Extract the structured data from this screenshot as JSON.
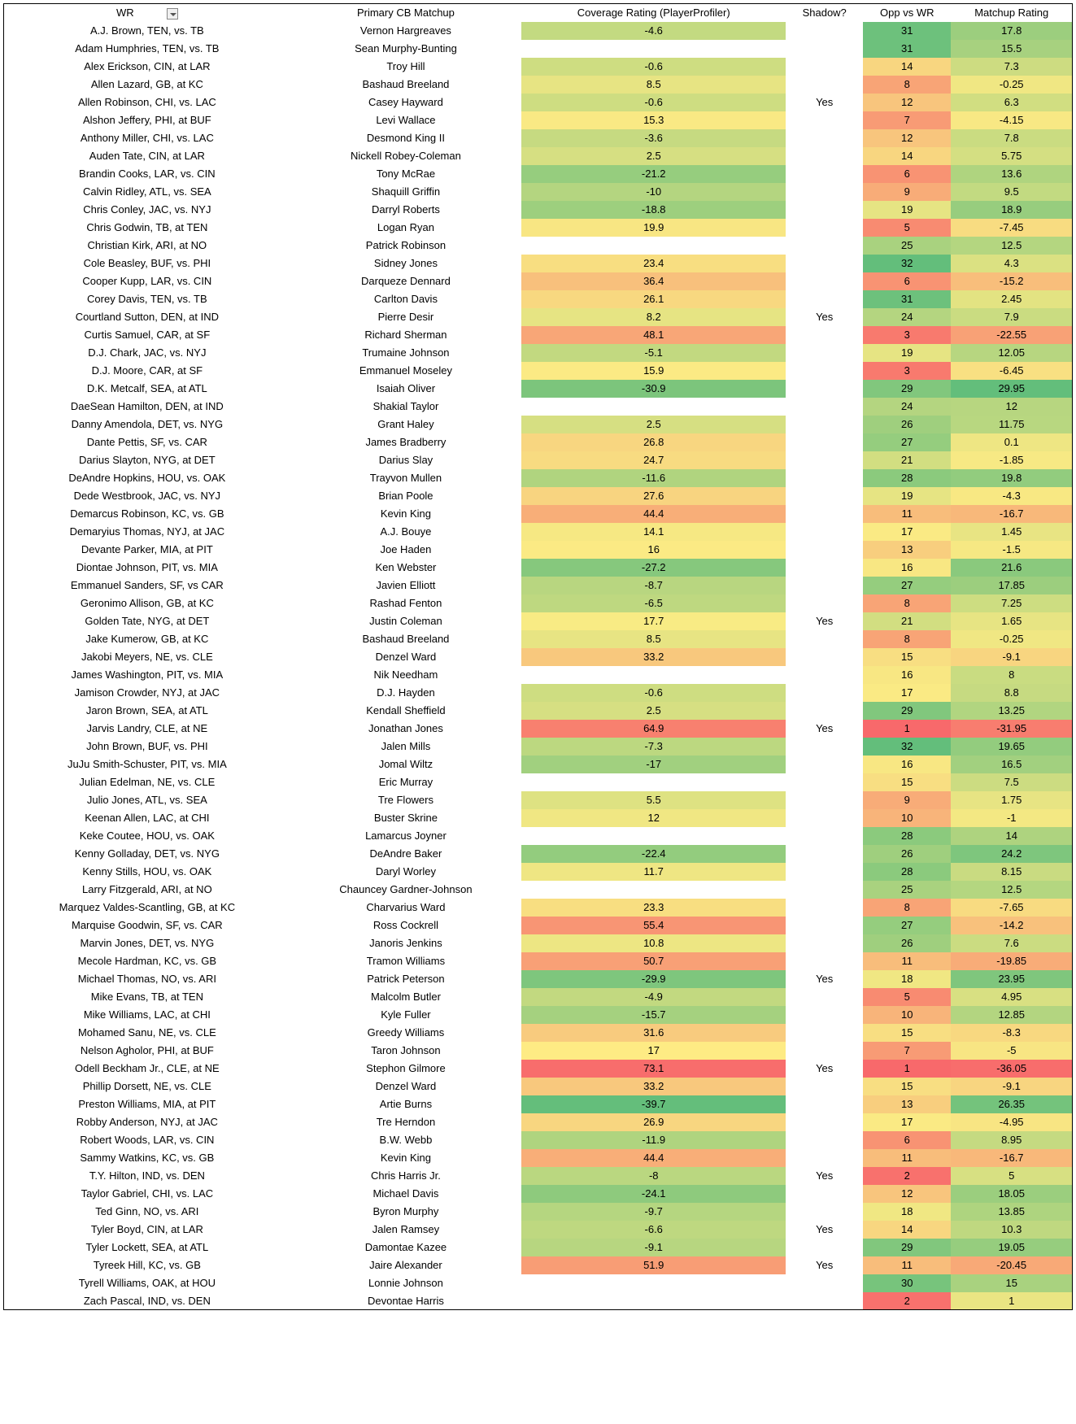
{
  "columns": [
    "WR",
    "Primary CB Matchup",
    "Coverage Rating (PlayerProfiler)",
    "Shadow?",
    "Opp vs WR",
    "Matchup Rating"
  ],
  "cr_scale": {
    "min": -40,
    "max": 75
  },
  "opp_scale": {
    "min": 1,
    "max": 32
  },
  "mr_scale": {
    "min": -37,
    "max": 30
  },
  "rows": [
    {
      "wr": "A.J. Brown, TEN, vs. TB",
      "cb": "Vernon Hargreaves",
      "cr": -4.6,
      "shadow": "",
      "opp": 31,
      "mr": 17.8
    },
    {
      "wr": "Adam Humphries, TEN, vs. TB",
      "cb": "Sean Murphy-Bunting",
      "cr": null,
      "shadow": "",
      "opp": 31,
      "mr": 15.5
    },
    {
      "wr": "Alex Erickson, CIN, at LAR",
      "cb": "Troy Hill",
      "cr": -0.6,
      "shadow": "",
      "opp": 14,
      "mr": 7.3
    },
    {
      "wr": "Allen Lazard, GB, at KC",
      "cb": "Bashaud Breeland",
      "cr": 8.5,
      "shadow": "",
      "opp": 8,
      "mr": -0.25
    },
    {
      "wr": "Allen Robinson, CHI, vs. LAC",
      "cb": "Casey Hayward",
      "cr": -0.6,
      "shadow": "Yes",
      "opp": 12,
      "mr": 6.3
    },
    {
      "wr": "Alshon Jeffery, PHI, at BUF",
      "cb": "Levi Wallace",
      "cr": 15.3,
      "shadow": "",
      "opp": 7,
      "mr": -4.15
    },
    {
      "wr": "Anthony Miller, CHI, vs. LAC",
      "cb": "Desmond King II",
      "cr": -3.6,
      "shadow": "",
      "opp": 12,
      "mr": 7.8
    },
    {
      "wr": "Auden Tate, CIN, at LAR",
      "cb": "Nickell Robey-Coleman",
      "cr": 2.5,
      "shadow": "",
      "opp": 14,
      "mr": 5.75
    },
    {
      "wr": "Brandin Cooks, LAR, vs. CIN",
      "cb": "Tony McRae",
      "cr": -21.2,
      "shadow": "",
      "opp": 6,
      "mr": 13.6
    },
    {
      "wr": "Calvin Ridley, ATL, vs. SEA",
      "cb": "Shaquill Griffin",
      "cr": -10,
      "shadow": "",
      "opp": 9,
      "mr": 9.5
    },
    {
      "wr": "Chris Conley, JAC, vs. NYJ",
      "cb": "Darryl Roberts",
      "cr": -18.8,
      "shadow": "",
      "opp": 19,
      "mr": 18.9
    },
    {
      "wr": "Chris Godwin, TB, at TEN",
      "cb": "Logan Ryan",
      "cr": 19.9,
      "shadow": "",
      "opp": 5,
      "mr": -7.45
    },
    {
      "wr": "Christian Kirk, ARI, at NO",
      "cb": "Patrick Robinson",
      "cr": null,
      "shadow": "",
      "opp": 25,
      "mr": 12.5
    },
    {
      "wr": "Cole Beasley, BUF, vs. PHI",
      "cb": "Sidney Jones",
      "cr": 23.4,
      "shadow": "",
      "opp": 32,
      "mr": 4.3
    },
    {
      "wr": "Cooper Kupp, LAR, vs. CIN",
      "cb": "Darqueze Dennard",
      "cr": 36.4,
      "shadow": "",
      "opp": 6,
      "mr": -15.2
    },
    {
      "wr": "Corey Davis, TEN, vs. TB",
      "cb": "Carlton Davis",
      "cr": 26.1,
      "shadow": "",
      "opp": 31,
      "mr": 2.45
    },
    {
      "wr": "Courtland Sutton, DEN, at IND",
      "cb": "Pierre Desir",
      "cr": 8.2,
      "shadow": "Yes",
      "opp": 24,
      "mr": 7.9
    },
    {
      "wr": "Curtis Samuel, CAR, at SF",
      "cb": "Richard Sherman",
      "cr": 48.1,
      "shadow": "",
      "opp": 3,
      "mr": -22.55
    },
    {
      "wr": "D.J. Chark, JAC, vs. NYJ",
      "cb": "Trumaine Johnson",
      "cr": -5.1,
      "shadow": "",
      "opp": 19,
      "mr": 12.05
    },
    {
      "wr": "D.J. Moore, CAR, at SF",
      "cb": "Emmanuel Moseley",
      "cr": 15.9,
      "shadow": "",
      "opp": 3,
      "mr": -6.45
    },
    {
      "wr": "D.K. Metcalf, SEA, at ATL",
      "cb": "Isaiah Oliver",
      "cr": -30.9,
      "shadow": "",
      "opp": 29,
      "mr": 29.95
    },
    {
      "wr": "DaeSean Hamilton, DEN, at IND",
      "cb": "Shakial Taylor",
      "cr": null,
      "shadow": "",
      "opp": 24,
      "mr": 12
    },
    {
      "wr": "Danny Amendola, DET, vs. NYG",
      "cb": "Grant Haley",
      "cr": 2.5,
      "shadow": "",
      "opp": 26,
      "mr": 11.75
    },
    {
      "wr": "Dante Pettis, SF, vs. CAR",
      "cb": "James Bradberry",
      "cr": 26.8,
      "shadow": "",
      "opp": 27,
      "mr": 0.1
    },
    {
      "wr": "Darius Slayton, NYG, at DET",
      "cb": "Darius Slay",
      "cr": 24.7,
      "shadow": "",
      "opp": 21,
      "mr": -1.85
    },
    {
      "wr": "DeAndre Hopkins, HOU, vs. OAK",
      "cb": "Trayvon Mullen",
      "cr": -11.6,
      "shadow": "",
      "opp": 28,
      "mr": 19.8
    },
    {
      "wr": "Dede Westbrook, JAC, vs. NYJ",
      "cb": "Brian Poole",
      "cr": 27.6,
      "shadow": "",
      "opp": 19,
      "mr": -4.3
    },
    {
      "wr": "Demarcus Robinson, KC, vs. GB",
      "cb": "Kevin King",
      "cr": 44.4,
      "shadow": "",
      "opp": 11,
      "mr": -16.7
    },
    {
      "wr": "Demaryius Thomas, NYJ, at JAC",
      "cb": "A.J. Bouye",
      "cr": 14.1,
      "shadow": "",
      "opp": 17,
      "mr": 1.45
    },
    {
      "wr": "Devante Parker, MIA, at PIT",
      "cb": "Joe Haden",
      "cr": 16,
      "shadow": "",
      "opp": 13,
      "mr": -1.5
    },
    {
      "wr": "Diontae Johnson, PIT, vs. MIA",
      "cb": "Ken Webster",
      "cr": -27.2,
      "shadow": "",
      "opp": 16,
      "mr": 21.6
    },
    {
      "wr": "Emmanuel Sanders, SF, vs CAR",
      "cb": "Javien Elliott",
      "cr": -8.7,
      "shadow": "",
      "opp": 27,
      "mr": 17.85
    },
    {
      "wr": "Geronimo Allison, GB, at KC",
      "cb": "Rashad Fenton",
      "cr": -6.5,
      "shadow": "",
      "opp": 8,
      "mr": 7.25
    },
    {
      "wr": "Golden Tate, NYG, at DET",
      "cb": "Justin Coleman",
      "cr": 17.7,
      "shadow": "Yes",
      "opp": 21,
      "mr": 1.65
    },
    {
      "wr": "Jake Kumerow, GB, at KC",
      "cb": "Bashaud Breeland",
      "cr": 8.5,
      "shadow": "",
      "opp": 8,
      "mr": -0.25
    },
    {
      "wr": "Jakobi Meyers, NE, vs. CLE",
      "cb": "Denzel Ward",
      "cr": 33.2,
      "shadow": "",
      "opp": 15,
      "mr": -9.1
    },
    {
      "wr": "James Washington, PIT, vs. MIA",
      "cb": "Nik Needham",
      "cr": null,
      "shadow": "",
      "opp": 16,
      "mr": 8
    },
    {
      "wr": "Jamison Crowder, NYJ, at JAC",
      "cb": "D.J. Hayden",
      "cr": -0.6,
      "shadow": "",
      "opp": 17,
      "mr": 8.8
    },
    {
      "wr": "Jaron Brown, SEA, at ATL",
      "cb": "Kendall Sheffield",
      "cr": 2.5,
      "shadow": "",
      "opp": 29,
      "mr": 13.25
    },
    {
      "wr": "Jarvis Landry, CLE, at NE",
      "cb": "Jonathan Jones",
      "cr": 64.9,
      "shadow": "Yes",
      "opp": 1,
      "mr": -31.95
    },
    {
      "wr": "John Brown, BUF, vs. PHI",
      "cb": "Jalen Mills",
      "cr": -7.3,
      "shadow": "",
      "opp": 32,
      "mr": 19.65
    },
    {
      "wr": "JuJu Smith-Schuster, PIT, vs. MIA",
      "cb": "Jomal Wiltz",
      "cr": -17,
      "shadow": "",
      "opp": 16,
      "mr": 16.5
    },
    {
      "wr": "Julian Edelman, NE, vs. CLE",
      "cb": "Eric Murray",
      "cr": null,
      "shadow": "",
      "opp": 15,
      "mr": 7.5
    },
    {
      "wr": "Julio Jones, ATL, vs. SEA",
      "cb": "Tre Flowers",
      "cr": 5.5,
      "shadow": "",
      "opp": 9,
      "mr": 1.75
    },
    {
      "wr": "Keenan Allen, LAC, at CHI",
      "cb": "Buster Skrine",
      "cr": 12,
      "shadow": "",
      "opp": 10,
      "mr": -1
    },
    {
      "wr": "Keke Coutee, HOU, vs. OAK",
      "cb": "Lamarcus Joyner",
      "cr": null,
      "shadow": "",
      "opp": 28,
      "mr": 14
    },
    {
      "wr": "Kenny Golladay, DET, vs. NYG",
      "cb": "DeAndre Baker",
      "cr": -22.4,
      "shadow": "",
      "opp": 26,
      "mr": 24.2
    },
    {
      "wr": "Kenny Stills, HOU, vs. OAK",
      "cb": "Daryl Worley",
      "cr": 11.7,
      "shadow": "",
      "opp": 28,
      "mr": 8.15
    },
    {
      "wr": "Larry Fitzgerald, ARI, at NO",
      "cb": "Chauncey Gardner-Johnson",
      "cr": null,
      "shadow": "",
      "opp": 25,
      "mr": 12.5
    },
    {
      "wr": "Marquez Valdes-Scantling, GB, at KC",
      "cb": "Charvarius Ward",
      "cr": 23.3,
      "shadow": "",
      "opp": 8,
      "mr": -7.65
    },
    {
      "wr": "Marquise Goodwin, SF, vs. CAR",
      "cb": "Ross Cockrell",
      "cr": 55.4,
      "shadow": "",
      "opp": 27,
      "mr": -14.2
    },
    {
      "wr": "Marvin Jones, DET, vs. NYG",
      "cb": "Janoris Jenkins",
      "cr": 10.8,
      "shadow": "",
      "opp": 26,
      "mr": 7.6
    },
    {
      "wr": "Mecole Hardman, KC, vs. GB",
      "cb": "Tramon Williams",
      "cr": 50.7,
      "shadow": "",
      "opp": 11,
      "mr": -19.85
    },
    {
      "wr": "Michael Thomas, NO, vs. ARI",
      "cb": "Patrick Peterson",
      "cr": -29.9,
      "shadow": "Yes",
      "opp": 18,
      "mr": 23.95
    },
    {
      "wr": "Mike Evans, TB, at TEN",
      "cb": "Malcolm Butler",
      "cr": -4.9,
      "shadow": "",
      "opp": 5,
      "mr": 4.95
    },
    {
      "wr": "Mike Williams, LAC, at CHI",
      "cb": "Kyle Fuller",
      "cr": -15.7,
      "shadow": "",
      "opp": 10,
      "mr": 12.85
    },
    {
      "wr": "Mohamed Sanu, NE, vs. CLE",
      "cb": "Greedy Williams",
      "cr": 31.6,
      "shadow": "",
      "opp": 15,
      "mr": -8.3
    },
    {
      "wr": "Nelson Agholor, PHI, at BUF",
      "cb": "Taron Johnson",
      "cr": 17,
      "shadow": "",
      "opp": 7,
      "mr": -5
    },
    {
      "wr": "Odell Beckham Jr., CLE, at NE",
      "cb": "Stephon Gilmore",
      "cr": 73.1,
      "shadow": "Yes",
      "opp": 1,
      "mr": -36.05
    },
    {
      "wr": "Phillip Dorsett, NE, vs. CLE",
      "cb": "Denzel Ward",
      "cr": 33.2,
      "shadow": "",
      "opp": 15,
      "mr": -9.1
    },
    {
      "wr": "Preston Williams, MIA, at PIT",
      "cb": "Artie Burns",
      "cr": -39.7,
      "shadow": "",
      "opp": 13,
      "mr": 26.35
    },
    {
      "wr": "Robby Anderson, NYJ, at JAC",
      "cb": "Tre Herndon",
      "cr": 26.9,
      "shadow": "",
      "opp": 17,
      "mr": -4.95
    },
    {
      "wr": "Robert Woods, LAR, vs. CIN",
      "cb": "B.W. Webb",
      "cr": -11.9,
      "shadow": "",
      "opp": 6,
      "mr": 8.95
    },
    {
      "wr": "Sammy Watkins, KC, vs. GB",
      "cb": "Kevin King",
      "cr": 44.4,
      "shadow": "",
      "opp": 11,
      "mr": -16.7
    },
    {
      "wr": "T.Y. Hilton, IND, vs. DEN",
      "cb": "Chris Harris Jr.",
      "cr": -8,
      "shadow": "Yes",
      "opp": 2,
      "mr": 5
    },
    {
      "wr": "Taylor Gabriel, CHI, vs. LAC",
      "cb": "Michael Davis",
      "cr": -24.1,
      "shadow": "",
      "opp": 12,
      "mr": 18.05
    },
    {
      "wr": "Ted Ginn, NO, vs. ARI",
      "cb": "Byron Murphy",
      "cr": -9.7,
      "shadow": "",
      "opp": 18,
      "mr": 13.85
    },
    {
      "wr": "Tyler Boyd, CIN, at LAR",
      "cb": "Jalen Ramsey",
      "cr": -6.6,
      "shadow": "Yes",
      "opp": 14,
      "mr": 10.3
    },
    {
      "wr": "Tyler Lockett, SEA, at ATL",
      "cb": "Damontae Kazee",
      "cr": -9.1,
      "shadow": "",
      "opp": 29,
      "mr": 19.05
    },
    {
      "wr": "Tyreek Hill, KC, vs. GB",
      "cb": "Jaire Alexander",
      "cr": 51.9,
      "shadow": "Yes",
      "opp": 11,
      "mr": -20.45
    },
    {
      "wr": "Tyrell Williams, OAK, at HOU",
      "cb": "Lonnie Johnson",
      "cr": null,
      "shadow": "",
      "opp": 30,
      "mr": 15
    },
    {
      "wr": "Zach Pascal, IND, vs. DEN",
      "cb": "Devontae Harris",
      "cr": null,
      "shadow": "",
      "opp": 2,
      "mr": 1
    }
  ]
}
